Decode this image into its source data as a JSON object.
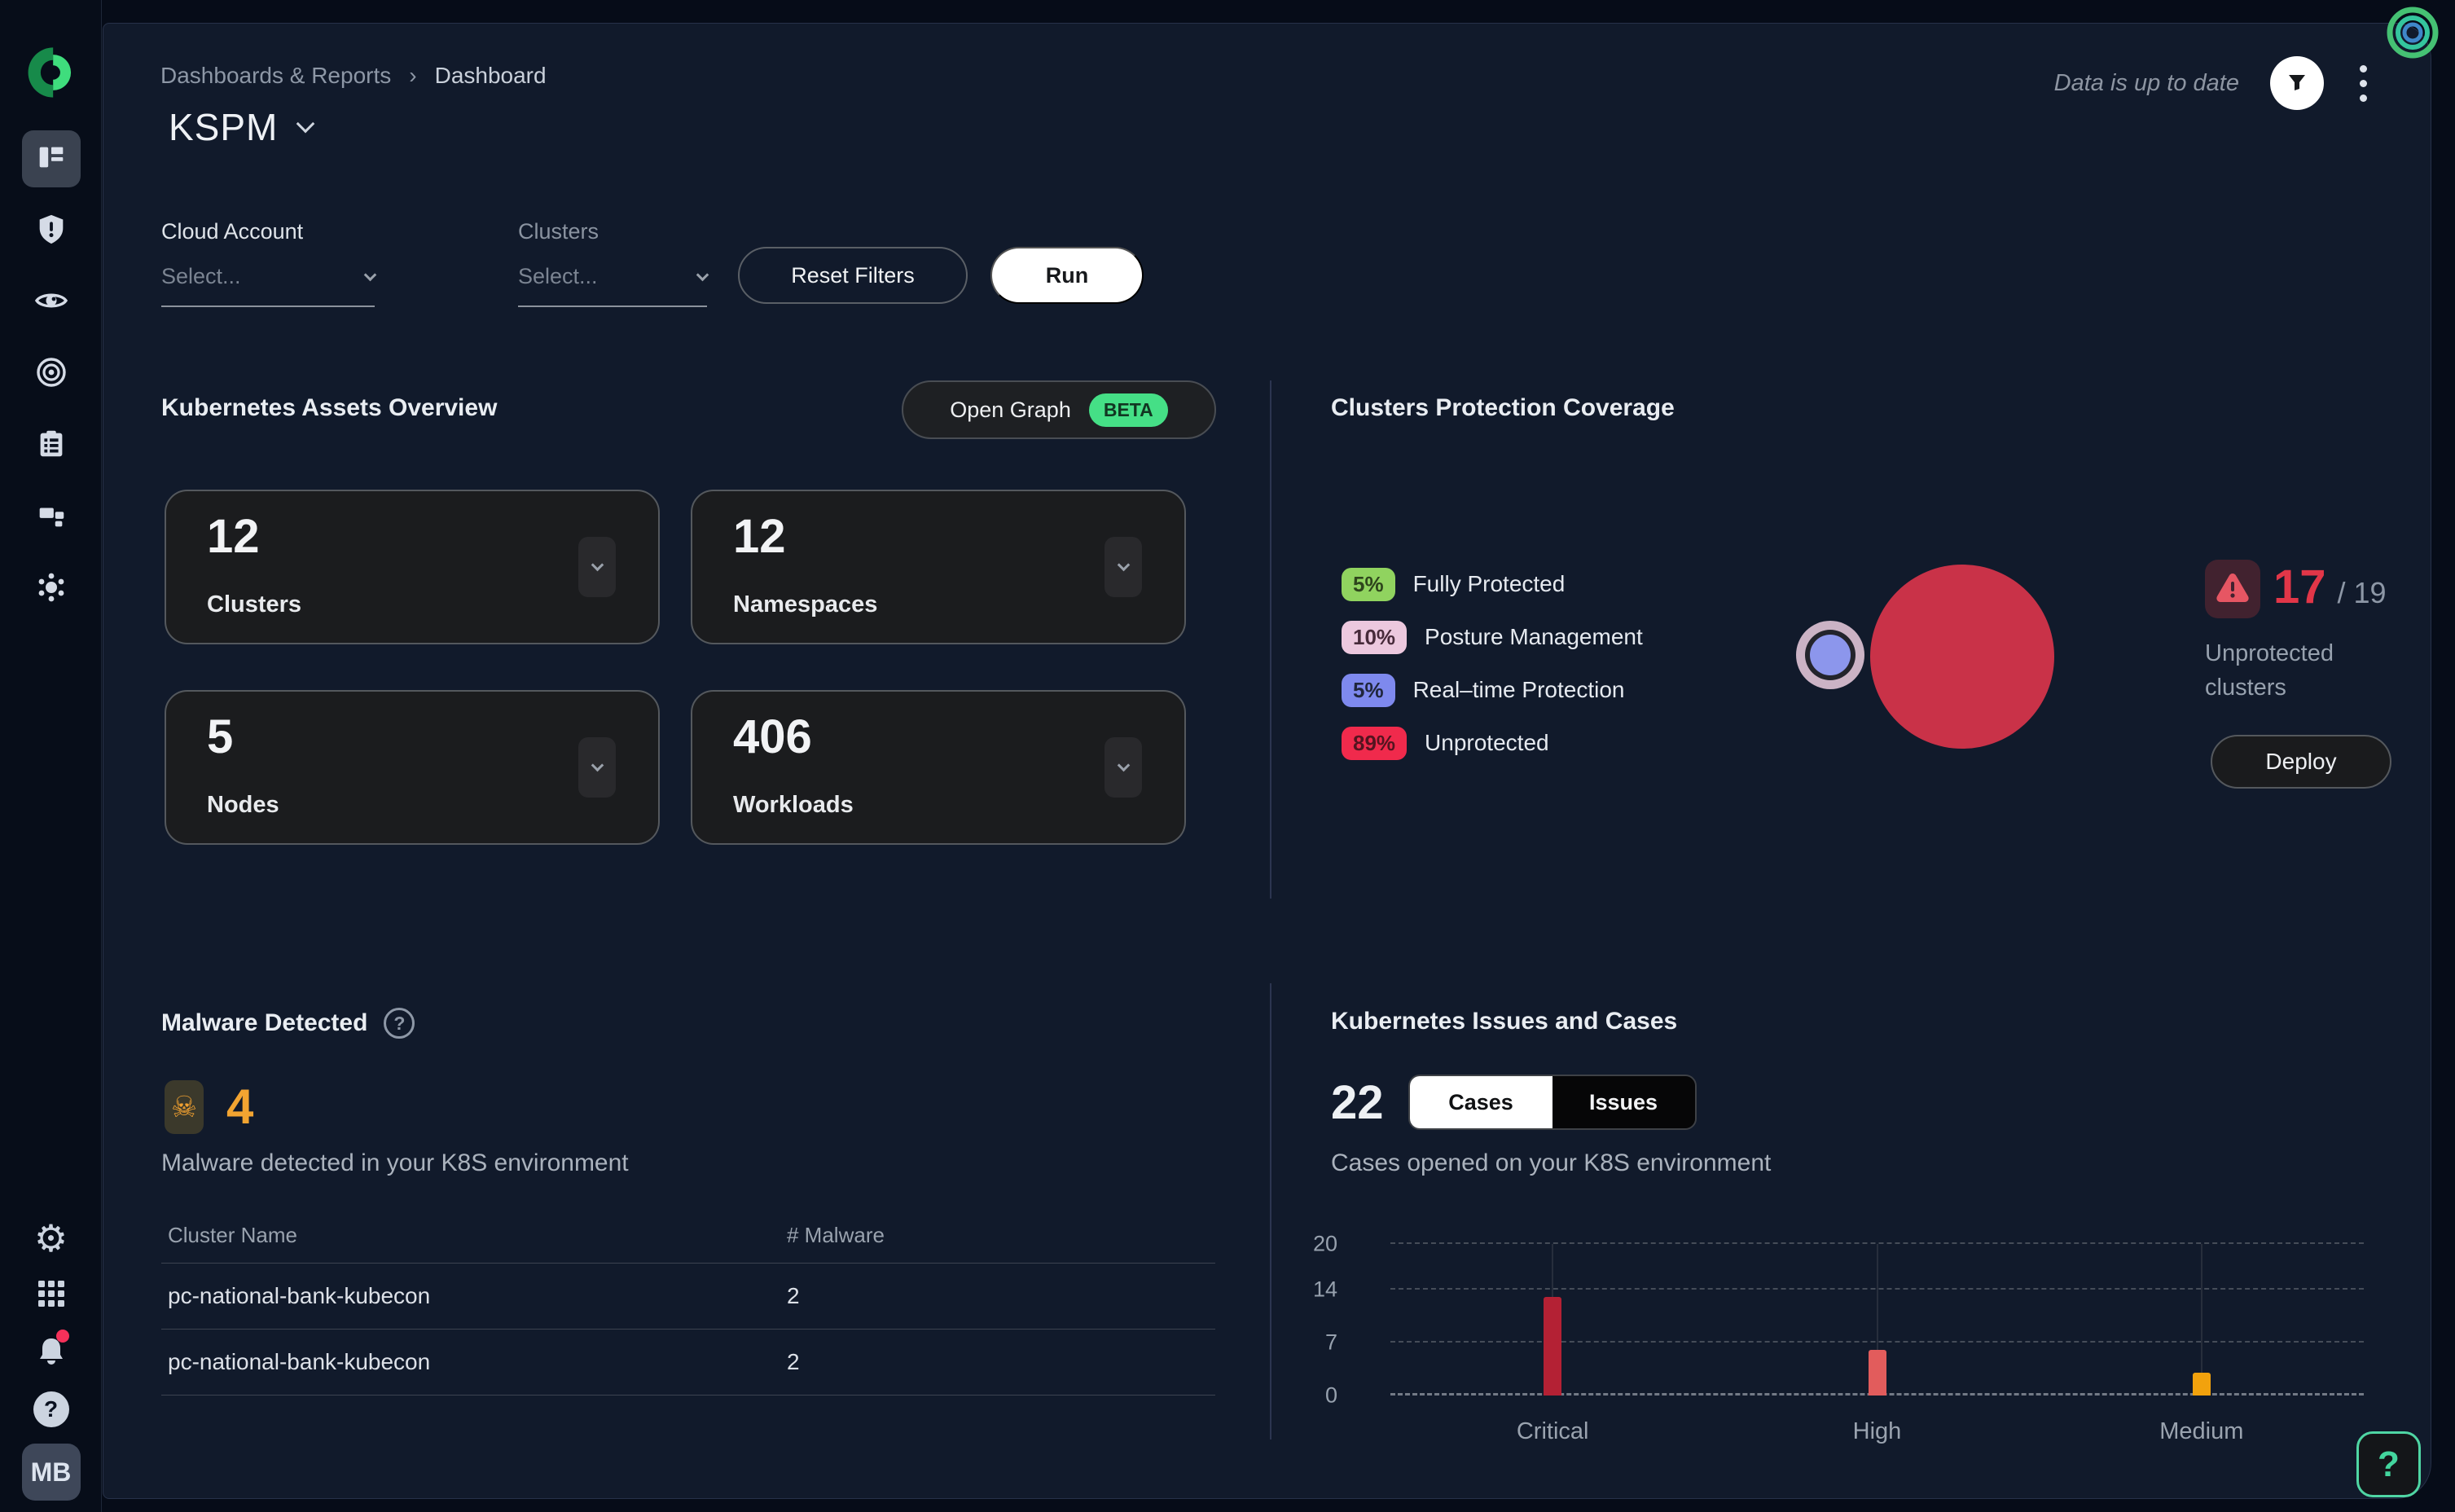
{
  "app": {
    "breadcrumb": {
      "parent": "Dashboards & Reports",
      "current": "Dashboard"
    },
    "title": "KSPM",
    "status": "Data is up to date",
    "avatar": "MB",
    "help_fab": "?"
  },
  "glyphs": {
    "question": "?",
    "skull": "☠",
    "gear": "⚙"
  },
  "sidebar_icons": [
    "dashboard",
    "shield-alert",
    "eye",
    "target",
    "clipboard",
    "blocks",
    "network",
    "gear",
    "apps-grid",
    "bell",
    "help",
    "avatar"
  ],
  "filters": {
    "cloud_account": {
      "label": "Cloud Account",
      "placeholder": "Select..."
    },
    "clusters": {
      "label": "Clusters",
      "placeholder": "Select..."
    },
    "reset": "Reset Filters",
    "run": "Run"
  },
  "assets": {
    "title": "Kubernetes Assets Overview",
    "open_graph": "Open Graph",
    "beta": "BETA",
    "cards": [
      {
        "value": "12",
        "label": "Clusters"
      },
      {
        "value": "12",
        "label": "Namespaces"
      },
      {
        "value": "5",
        "label": "Nodes"
      },
      {
        "value": "406",
        "label": "Workloads"
      }
    ]
  },
  "protection": {
    "title": "Clusters Protection Coverage",
    "legend": [
      {
        "pct": "5%",
        "label": "Fully Protected",
        "color": "#90d35f"
      },
      {
        "pct": "10%",
        "label": "Posture Management",
        "color": "#ecc8de"
      },
      {
        "pct": "5%",
        "label": "Real–time Protection",
        "color": "#7e89ee"
      },
      {
        "pct": "89%",
        "label": "Unprotected",
        "color": "#f02a4c"
      }
    ],
    "unprotected_count": "17",
    "total": "/ 19",
    "caption": "Unprotected clusters",
    "deploy": "Deploy",
    "bubble_colors": {
      "unprotected": "#c93248",
      "realtime_core": "#8c96ec",
      "posture_ring": "#cbb3c5"
    }
  },
  "malware": {
    "title": "Malware Detected",
    "count": "4",
    "subtitle": "Malware detected in your K8S environment",
    "table": {
      "headers": [
        "Cluster Name",
        "# Malware"
      ],
      "rows": [
        [
          "pc-national-bank-kubecon",
          "2"
        ],
        [
          "pc-national-bank-kubecon",
          "2"
        ]
      ]
    }
  },
  "issues": {
    "title": "Kubernetes Issues and Cases",
    "count": "22",
    "tabs": [
      "Cases",
      "Issues"
    ],
    "active_tab": "Cases",
    "subtitle": "Cases opened on your K8S environment"
  },
  "chart_data": [
    {
      "type": "bar",
      "title": "Cases opened on your K8S environment",
      "categories": [
        "Critical",
        "High",
        "Medium"
      ],
      "values": [
        13,
        6,
        3
      ],
      "colors": [
        "#b42134",
        "#e25c5c",
        "#f2a20d"
      ],
      "yticks": [
        0,
        7,
        14,
        20
      ],
      "ylim": [
        0,
        20
      ],
      "xlabel": "",
      "ylabel": "",
      "grid": "dashed-horizontal",
      "legend": "none"
    },
    {
      "type": "bubble",
      "title": "Clusters Protection Coverage",
      "series": [
        {
          "name": "Unprotected",
          "pct": 89,
          "color": "#c93248"
        },
        {
          "name": "Posture Management",
          "pct": 10,
          "color": "#cbb3c5"
        },
        {
          "name": "Real–time Protection",
          "pct": 5,
          "color": "#8c96ec"
        },
        {
          "name": "Fully Protected",
          "pct": 5,
          "color": "#90d35f"
        }
      ]
    }
  ]
}
